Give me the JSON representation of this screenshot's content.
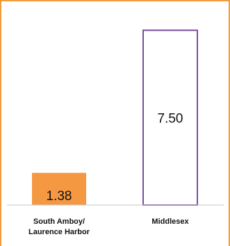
{
  "colors": {
    "frame_border": "#F39C3C",
    "bar_south_amboy_fill": "#F59842",
    "bar_middlesex_stroke": "#7A4E9F",
    "axis": "#C8C8C8"
  },
  "chart_data": {
    "type": "bar",
    "title": "",
    "xlabel": "",
    "ylabel": "",
    "ylim": [
      0,
      8.5
    ],
    "grid": false,
    "categories": [
      [
        "South Amboy/",
        "Laurence Harbor"
      ],
      [
        "Middlesex"
      ]
    ],
    "values": [
      1.38,
      7.5
    ],
    "value_labels": [
      "1.38",
      "7.50"
    ]
  }
}
